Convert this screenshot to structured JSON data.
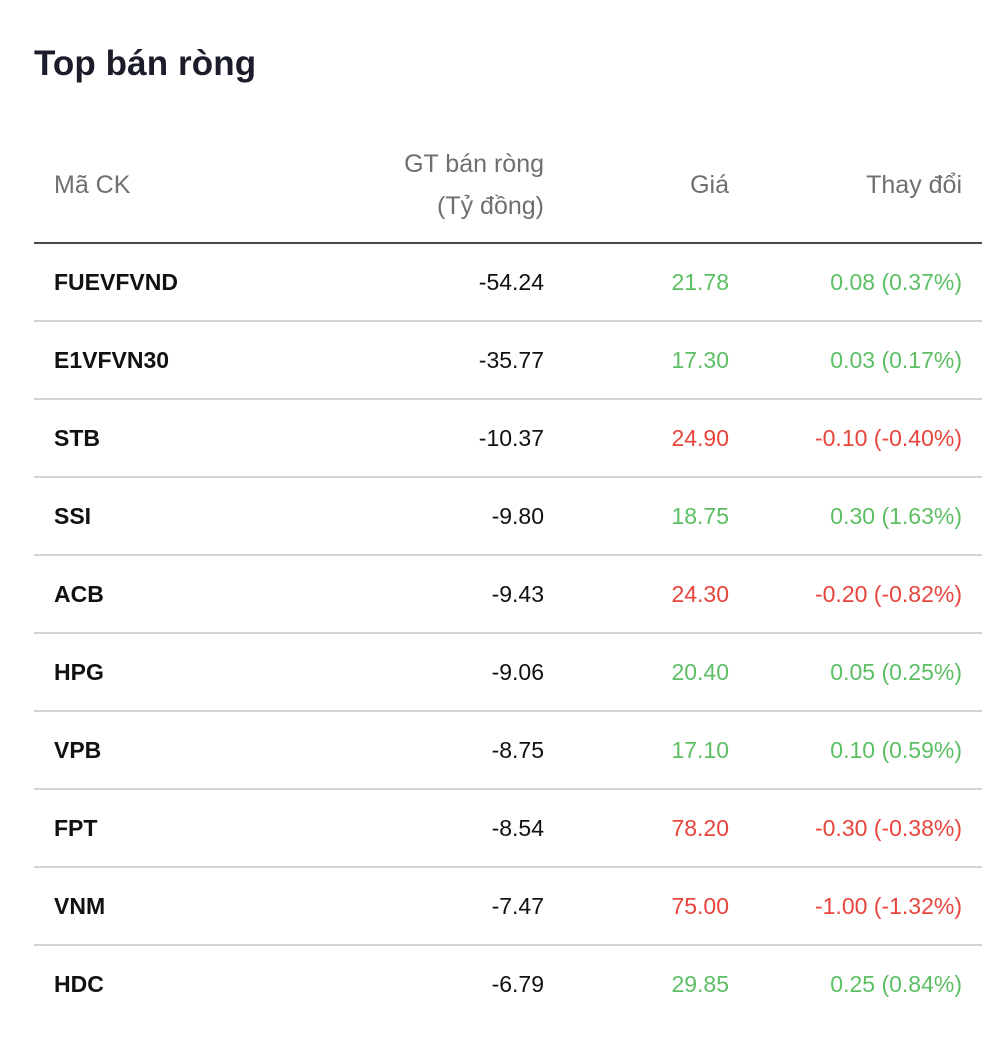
{
  "title": "Top bán ròng",
  "columns": {
    "symbol": "Mã CK",
    "net_value_line1": "GT bán ròng",
    "net_value_line2": "(Tỷ đồng)",
    "price": "Giá",
    "change": "Thay đổi"
  },
  "colors": {
    "up": "#5cbf64",
    "down": "#e8453c"
  },
  "rows": [
    {
      "symbol": "FUEVFVND",
      "net_value": "-54.24",
      "price": "21.78",
      "change": "0.08 (0.37%)",
      "direction": "up"
    },
    {
      "symbol": "E1VFVN30",
      "net_value": "-35.77",
      "price": "17.30",
      "change": "0.03 (0.17%)",
      "direction": "up"
    },
    {
      "symbol": "STB",
      "net_value": "-10.37",
      "price": "24.90",
      "change": "-0.10 (-0.40%)",
      "direction": "down"
    },
    {
      "symbol": "SSI",
      "net_value": "-9.80",
      "price": "18.75",
      "change": "0.30 (1.63%)",
      "direction": "up"
    },
    {
      "symbol": "ACB",
      "net_value": "-9.43",
      "price": "24.30",
      "change": "-0.20 (-0.82%)",
      "direction": "down"
    },
    {
      "symbol": "HPG",
      "net_value": "-9.06",
      "price": "20.40",
      "change": "0.05 (0.25%)",
      "direction": "up"
    },
    {
      "symbol": "VPB",
      "net_value": "-8.75",
      "price": "17.10",
      "change": "0.10 (0.59%)",
      "direction": "up"
    },
    {
      "symbol": "FPT",
      "net_value": "-8.54",
      "price": "78.20",
      "change": "-0.30 (-0.38%)",
      "direction": "down"
    },
    {
      "symbol": "VNM",
      "net_value": "-7.47",
      "price": "75.00",
      "change": "-1.00 (-1.32%)",
      "direction": "down"
    },
    {
      "symbol": "HDC",
      "net_value": "-6.79",
      "price": "29.85",
      "change": "0.25 (0.84%)",
      "direction": "up"
    }
  ]
}
